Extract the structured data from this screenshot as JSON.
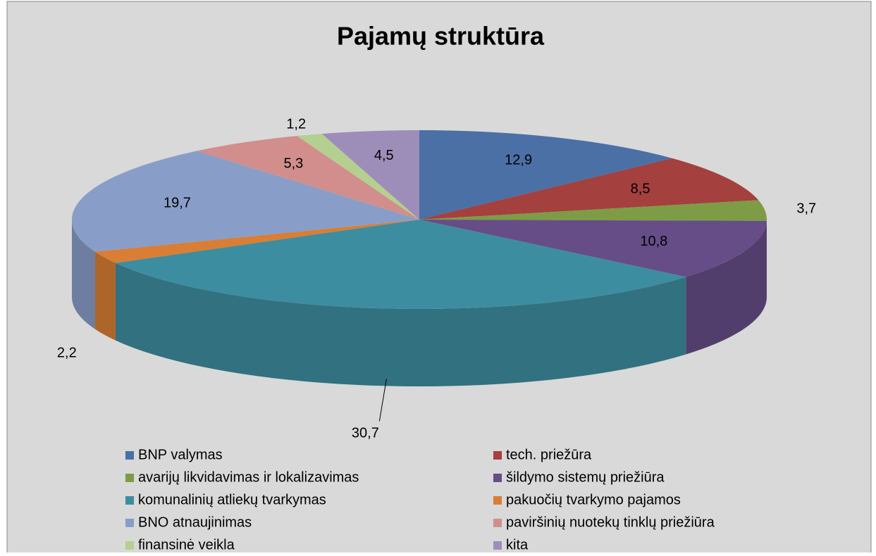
{
  "chart_data": {
    "type": "pie3d",
    "title": "Pajamų struktūra",
    "categories": [
      "BNP valymas",
      "tech. priežūra",
      "avarijų likvidavimas ir lokalizavimas",
      "šildymo sistemų priežiūra",
      "komunalinių atliekų tvarkymas",
      "pakuočių tvarkymo pajamos",
      "BNO atnaujinimas",
      "paviršinių nuotekų tinklų priežiūra",
      "finansinė veikla",
      "kita"
    ],
    "values": [
      12.9,
      8.5,
      3.7,
      10.8,
      30.7,
      2.2,
      19.7,
      5.3,
      1.2,
      4.5
    ],
    "value_labels": [
      "12,9",
      "8,5",
      "3,7",
      "10,8",
      "30,7",
      "2,2",
      "19,7",
      "5,3",
      "1,2",
      "4,5"
    ],
    "colors": [
      "#4a70a6",
      "#a4403e",
      "#7d9c45",
      "#664d87",
      "#3d8da0",
      "#d97e34",
      "#889ec8",
      "#d18e8c",
      "#b5cf90",
      "#9d8eb9"
    ],
    "legend": "bottom"
  }
}
